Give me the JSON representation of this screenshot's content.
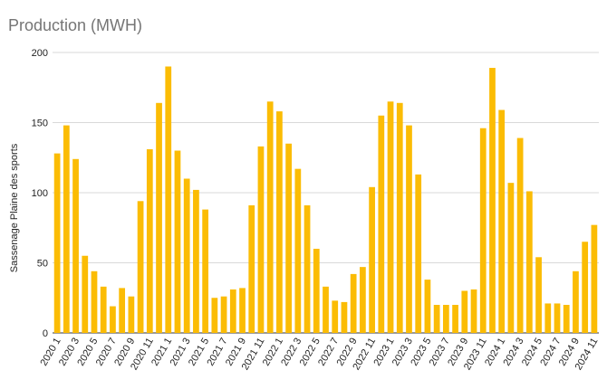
{
  "title": "Production (MWH)",
  "chart_data": {
    "type": "bar",
    "title": "Production (MWH)",
    "xlabel": "",
    "ylabel": "Sassenage Plaine des sports",
    "ylim": [
      0,
      200
    ],
    "yticks": [
      0,
      50,
      100,
      150,
      200
    ],
    "grid": true,
    "legend": "none",
    "bar_color": "#FBBC04",
    "grid_color": "#D9D9D9",
    "categories": [
      "2020 1",
      "2020 2",
      "2020 3",
      "2020 4",
      "2020 5",
      "2020 6",
      "2020 7",
      "2020 8",
      "2020 9",
      "2020 10",
      "2020 11",
      "2020 12",
      "2021 1",
      "2021 2",
      "2021 3",
      "2021 4",
      "2021 5",
      "2021 6",
      "2021 7",
      "2021 8",
      "2021 9",
      "2021 10",
      "2021 11",
      "2021 12",
      "2022 1",
      "2022 2",
      "2022 3",
      "2022 4",
      "2022 5",
      "2022 6",
      "2022 7",
      "2022 8",
      "2022 9",
      "2022 10",
      "2022 11",
      "2022 12",
      "2023 1",
      "2023 2",
      "2023 3",
      "2023 4",
      "2023 5",
      "2023 6",
      "2023 7",
      "2023 8",
      "2023 9",
      "2023 10",
      "2023 11",
      "2023 12",
      "2024 1",
      "2024 2",
      "2024 3",
      "2024 4",
      "2024 5",
      "2024 6",
      "2024 7",
      "2024 8",
      "2024 9",
      "2024 10",
      "2024 11"
    ],
    "xtick_labels": [
      "2020 1",
      "2020 3",
      "2020 5",
      "2020 7",
      "2020 9",
      "2020 11",
      "2021 1",
      "2021 3",
      "2021 5",
      "2021 7",
      "2021 9",
      "2021 11",
      "2022 1",
      "2022 3",
      "2022 5",
      "2022 7",
      "2022 9",
      "2022 11",
      "2023 1",
      "2023 3",
      "2023 5",
      "2023 7",
      "2023 9",
      "2023 11",
      "2024 1",
      "2024 3",
      "2024 5",
      "2024 7",
      "2024 9",
      "2024 11"
    ],
    "values": [
      128,
      148,
      124,
      55,
      44,
      33,
      19,
      32,
      26,
      94,
      131,
      164,
      190,
      130,
      110,
      102,
      88,
      25,
      26,
      31,
      32,
      91,
      133,
      165,
      158,
      135,
      117,
      91,
      60,
      33,
      23,
      22,
      42,
      47,
      104,
      155,
      165,
      164,
      148,
      113,
      38,
      20,
      20,
      20,
      30,
      31,
      146,
      189,
      159,
      107,
      139,
      101,
      54,
      21,
      21,
      20,
      44,
      65,
      77
    ]
  }
}
